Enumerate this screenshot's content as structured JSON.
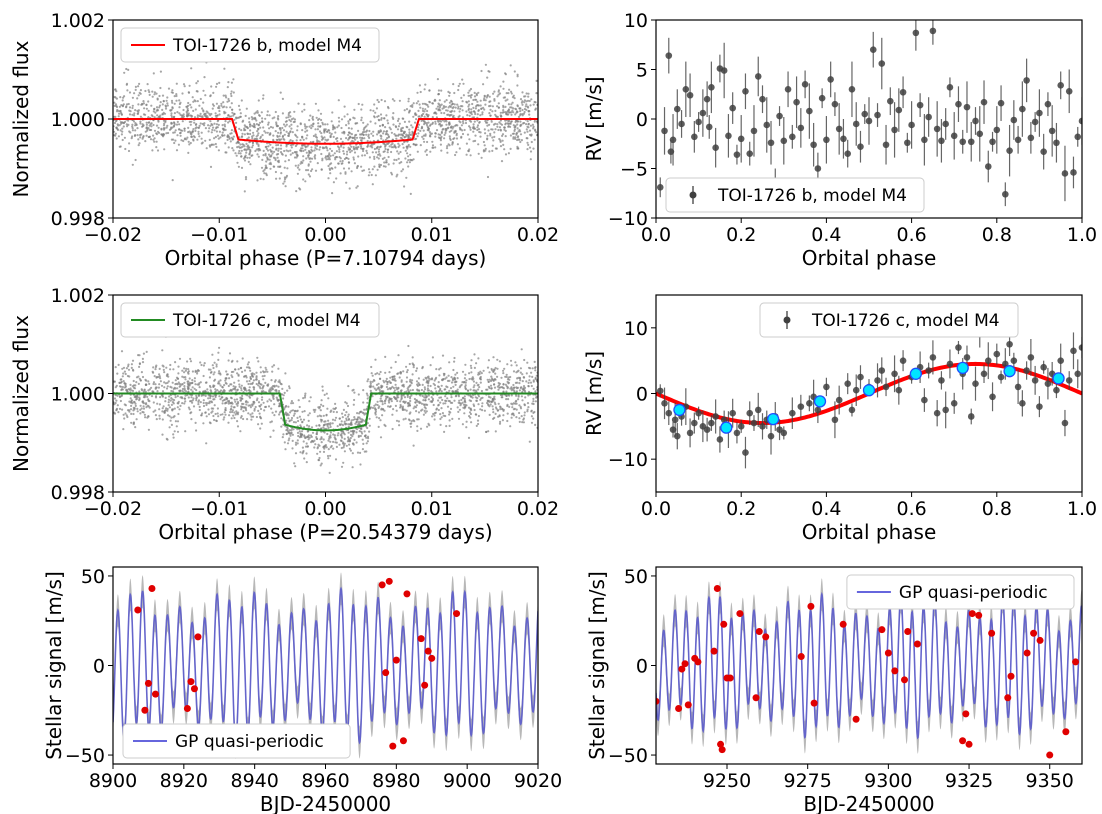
{
  "chart_data": [
    {
      "id": "p1",
      "type": "scatter",
      "xlabel": "Orbital phase (P=7.10794 days)",
      "ylabel": "Normalized flux",
      "xlim": [
        -0.02,
        0.02
      ],
      "ylim": [
        0.998,
        1.002
      ],
      "xticks": [
        -0.02,
        -0.01,
        0.0,
        0.01,
        0.02
      ],
      "xtick_labels": [
        "−0.02",
        "−0.01",
        "0.00",
        "0.01",
        "0.02"
      ],
      "yticks": [
        0.998,
        1.0,
        1.002
      ],
      "ytick_labels": [
        "0.998",
        "1.000",
        "1.002"
      ],
      "legend": {
        "position": "upper-left",
        "entries": [
          {
            "label": "TOI-1726 b, model M4",
            "color": "#ff0000",
            "kind": "line"
          }
        ]
      },
      "transit": {
        "depth": 0.0005,
        "half_duration": 0.0088,
        "ingress": 0.0006,
        "color": "#ff0000"
      },
      "scatter_noise": 0.00035,
      "point_color": "#808080"
    },
    {
      "id": "p2",
      "type": "scatter",
      "xlabel": "Orbital phase",
      "ylabel": "RV [m/s]",
      "xlim": [
        0.0,
        1.0
      ],
      "ylim": [
        -10,
        10
      ],
      "xticks": [
        0.0,
        0.2,
        0.4,
        0.6,
        0.8,
        1.0
      ],
      "xtick_labels": [
        "0.0",
        "0.2",
        "0.4",
        "0.6",
        "0.8",
        "1.0"
      ],
      "yticks": [
        -10,
        -5,
        0,
        5,
        10
      ],
      "ytick_labels": [
        "−10",
        "−5",
        "0",
        "5",
        "10"
      ],
      "legend": {
        "position": "lower-left",
        "entries": [
          {
            "label": "TOI-1726 b, model M4",
            "color": "#404040",
            "kind": "errorbar"
          }
        ]
      },
      "points": [
        [
          0.01,
          -6.9
        ],
        [
          0.02,
          -1.2
        ],
        [
          0.03,
          6.4
        ],
        [
          0.035,
          -3.3
        ],
        [
          0.04,
          -2.1
        ],
        [
          0.05,
          1.0
        ],
        [
          0.06,
          -0.5
        ],
        [
          0.07,
          3.0
        ],
        [
          0.08,
          2.4
        ],
        [
          0.09,
          -1.8
        ],
        [
          0.1,
          -0.3
        ],
        [
          0.11,
          0.6
        ],
        [
          0.12,
          2.0
        ],
        [
          0.125,
          -0.8
        ],
        [
          0.13,
          3.2
        ],
        [
          0.14,
          -2.9
        ],
        [
          0.15,
          5.1
        ],
        [
          0.16,
          4.9
        ],
        [
          0.17,
          -1.7
        ],
        [
          0.18,
          1.1
        ],
        [
          0.19,
          -3.6
        ],
        [
          0.2,
          -2.0
        ],
        [
          0.21,
          2.8
        ],
        [
          0.22,
          -3.5
        ],
        [
          0.23,
          -1.2
        ],
        [
          0.24,
          4.3
        ],
        [
          0.25,
          2.0
        ],
        [
          0.26,
          -0.6
        ],
        [
          0.27,
          -2.4
        ],
        [
          0.28,
          -6.6
        ],
        [
          0.29,
          0.3
        ],
        [
          0.3,
          -2.2
        ],
        [
          0.31,
          3.0
        ],
        [
          0.32,
          -1.8
        ],
        [
          0.33,
          1.7
        ],
        [
          0.34,
          -0.9
        ],
        [
          0.35,
          3.5
        ],
        [
          0.36,
          0.8
        ],
        [
          0.37,
          -2.6
        ],
        [
          0.38,
          -5.0
        ],
        [
          0.39,
          2.1
        ],
        [
          0.4,
          -2.1
        ],
        [
          0.41,
          4.0
        ],
        [
          0.42,
          1.5
        ],
        [
          0.43,
          -1.0
        ],
        [
          0.44,
          -2.0
        ],
        [
          0.45,
          -3.5
        ],
        [
          0.46,
          3.0
        ],
        [
          0.47,
          -0.5
        ],
        [
          0.48,
          -2.8
        ],
        [
          0.49,
          0.5
        ],
        [
          0.5,
          -0.2
        ],
        [
          0.51,
          7.0
        ],
        [
          0.52,
          0.4
        ],
        [
          0.53,
          5.6
        ],
        [
          0.54,
          -2.6
        ],
        [
          0.55,
          1.8
        ],
        [
          0.56,
          -1.1
        ],
        [
          0.57,
          0.9
        ],
        [
          0.58,
          2.7
        ],
        [
          0.59,
          -2.4
        ],
        [
          0.6,
          -0.6
        ],
        [
          0.61,
          8.7
        ],
        [
          0.62,
          1.4
        ],
        [
          0.63,
          -2.1
        ],
        [
          0.64,
          0.2
        ],
        [
          0.65,
          8.9
        ],
        [
          0.66,
          -1.0
        ],
        [
          0.67,
          -2.2
        ],
        [
          0.68,
          -0.5
        ],
        [
          0.69,
          3.2
        ],
        [
          0.7,
          -1.7
        ],
        [
          0.71,
          1.5
        ],
        [
          0.72,
          -2.3
        ],
        [
          0.73,
          1.2
        ],
        [
          0.74,
          -2.3
        ],
        [
          0.75,
          -0.2
        ],
        [
          0.76,
          -1.5
        ],
        [
          0.77,
          1.7
        ],
        [
          0.78,
          -4.8
        ],
        [
          0.79,
          -2.3
        ],
        [
          0.8,
          -1.1
        ],
        [
          0.81,
          1.6
        ],
        [
          0.82,
          -7.6
        ],
        [
          0.83,
          -3.2
        ],
        [
          0.84,
          -0.1
        ],
        [
          0.85,
          -2.1
        ],
        [
          0.86,
          1.0
        ],
        [
          0.87,
          3.9
        ],
        [
          0.88,
          -1.9
        ],
        [
          0.89,
          -0.3
        ],
        [
          0.9,
          0.6
        ],
        [
          0.91,
          -3.3
        ],
        [
          0.92,
          1.5
        ],
        [
          0.93,
          -1.2
        ],
        [
          0.94,
          -2.4
        ],
        [
          0.95,
          3.4
        ],
        [
          0.96,
          -5.5
        ],
        [
          0.97,
          2.8
        ],
        [
          0.98,
          -5.4
        ],
        [
          0.99,
          -1.8
        ],
        [
          1.0,
          -0.2
        ]
      ],
      "point_color": "#404040"
    },
    {
      "id": "p3",
      "type": "scatter",
      "xlabel": "Orbital phase (P=20.54379 days)",
      "ylabel": "Normalized flux",
      "xlim": [
        -0.02,
        0.02
      ],
      "ylim": [
        0.998,
        1.002
      ],
      "xticks": [
        -0.02,
        -0.01,
        0.0,
        0.01,
        0.02
      ],
      "xtick_labels": [
        "−0.02",
        "−0.01",
        "0.00",
        "0.01",
        "0.02"
      ],
      "yticks": [
        0.998,
        1.0,
        1.002
      ],
      "ytick_labels": [
        "0.998",
        "1.000",
        "1.002"
      ],
      "legend": {
        "position": "upper-left",
        "entries": [
          {
            "label": "TOI-1726 c, model M4",
            "color": "#228b22",
            "kind": "line"
          }
        ]
      },
      "transit": {
        "depth": 0.00075,
        "half_duration": 0.0043,
        "ingress": 0.0005,
        "color": "#228b22"
      },
      "scatter_noise": 0.00032,
      "point_color": "#808080"
    },
    {
      "id": "p4",
      "type": "scatter",
      "xlabel": "Orbital phase",
      "ylabel": "RV [m/s]",
      "xlim": [
        0.0,
        1.0
      ],
      "ylim": [
        -15,
        15
      ],
      "xticks": [
        0.0,
        0.2,
        0.4,
        0.6,
        0.8,
        1.0
      ],
      "xtick_labels": [
        "0.0",
        "0.2",
        "0.4",
        "0.6",
        "0.8",
        "1.0"
      ],
      "yticks": [
        -10,
        0,
        10
      ],
      "ytick_labels": [
        "−10",
        "0",
        "10"
      ],
      "legend": {
        "position": "upper-center",
        "entries": [
          {
            "label": "TOI-1726 c, model M4",
            "color": "#404040",
            "kind": "errorbar"
          }
        ]
      },
      "model": {
        "type": "sine",
        "amplitude": 4.5,
        "phase_shift": 0.0,
        "color": "#ff0000"
      },
      "points": [
        [
          0.01,
          0.4
        ],
        [
          0.02,
          -1.5
        ],
        [
          0.03,
          -3.0
        ],
        [
          0.04,
          -5.5
        ],
        [
          0.045,
          -4.0
        ],
        [
          0.05,
          -6.5
        ],
        [
          0.06,
          -3.5
        ],
        [
          0.07,
          -2.0
        ],
        [
          0.08,
          -6.0
        ],
        [
          0.09,
          -4.5
        ],
        [
          0.1,
          -3.0
        ],
        [
          0.11,
          -5.0
        ],
        [
          0.12,
          -5.5
        ],
        [
          0.13,
          -4.5
        ],
        [
          0.14,
          -3.5
        ],
        [
          0.15,
          -7.0
        ],
        [
          0.16,
          -4.0
        ],
        [
          0.17,
          -5.5
        ],
        [
          0.18,
          -3.0
        ],
        [
          0.19,
          -6.0
        ],
        [
          0.2,
          -5.0
        ],
        [
          0.21,
          -9.0
        ],
        [
          0.22,
          -3.0
        ],
        [
          0.23,
          -4.5
        ],
        [
          0.24,
          -2.5
        ],
        [
          0.25,
          -5.0
        ],
        [
          0.26,
          -4.0
        ],
        [
          0.27,
          -6.5
        ],
        [
          0.28,
          -3.5
        ],
        [
          0.29,
          -5.5
        ],
        [
          0.3,
          -6.0
        ],
        [
          0.32,
          -3.0
        ],
        [
          0.34,
          -2.0
        ],
        [
          0.36,
          -1.5
        ],
        [
          0.37,
          -0.5
        ],
        [
          0.38,
          -2.5
        ],
        [
          0.4,
          1.0
        ],
        [
          0.42,
          -4.0
        ],
        [
          0.43,
          -1.0
        ],
        [
          0.45,
          1.5
        ],
        [
          0.46,
          -2.5
        ],
        [
          0.47,
          0.5
        ],
        [
          0.48,
          2.5
        ],
        [
          0.5,
          1.0
        ],
        [
          0.52,
          2.0
        ],
        [
          0.53,
          3.5
        ],
        [
          0.54,
          1.0
        ],
        [
          0.56,
          3.0
        ],
        [
          0.57,
          0.5
        ],
        [
          0.58,
          5.0
        ],
        [
          0.6,
          2.5
        ],
        [
          0.62,
          4.0
        ],
        [
          0.63,
          -1.0
        ],
        [
          0.64,
          3.5
        ],
        [
          0.65,
          5.5
        ],
        [
          0.66,
          -3.0
        ],
        [
          0.67,
          2.0
        ],
        [
          0.68,
          -2.5
        ],
        [
          0.69,
          4.5
        ],
        [
          0.7,
          -1.5
        ],
        [
          0.71,
          7.0
        ],
        [
          0.72,
          3.0
        ],
        [
          0.73,
          5.5
        ],
        [
          0.74,
          -3.5
        ],
        [
          0.75,
          1.5
        ],
        [
          0.76,
          9.0
        ],
        [
          0.77,
          3.0
        ],
        [
          0.78,
          5.0
        ],
        [
          0.79,
          -0.5
        ],
        [
          0.8,
          6.0
        ],
        [
          0.81,
          2.5
        ],
        [
          0.82,
          4.5
        ],
        [
          0.83,
          7.5
        ],
        [
          0.84,
          5.0
        ],
        [
          0.85,
          1.0
        ],
        [
          0.86,
          -1.5
        ],
        [
          0.87,
          3.5
        ],
        [
          0.88,
          5.5
        ],
        [
          0.89,
          2.0
        ],
        [
          0.9,
          -2.0
        ],
        [
          0.91,
          4.0
        ],
        [
          0.92,
          1.5
        ],
        [
          0.93,
          3.0
        ],
        [
          0.94,
          0.5
        ],
        [
          0.95,
          5.0
        ],
        [
          0.96,
          -4.5
        ],
        [
          0.97,
          2.0
        ],
        [
          0.98,
          6.5
        ],
        [
          0.99,
          3.0
        ],
        [
          1.0,
          7.0
        ]
      ],
      "binned": [
        [
          0.055,
          -2.5
        ],
        [
          0.165,
          -5.2
        ],
        [
          0.275,
          -3.9
        ],
        [
          0.385,
          -1.2
        ],
        [
          0.5,
          0.5
        ],
        [
          0.61,
          3.0
        ],
        [
          0.72,
          3.9
        ],
        [
          0.83,
          3.4
        ],
        [
          0.945,
          2.3
        ]
      ],
      "point_color": "#404040",
      "binned_color": "#00e5ff"
    },
    {
      "id": "p5",
      "type": "line",
      "xlabel": "BJD-2450000",
      "ylabel": "Stellar signal [m/s]",
      "xlim": [
        8900,
        9020
      ],
      "ylim": [
        -55,
        55
      ],
      "xticks": [
        8900,
        8920,
        8940,
        8960,
        8980,
        9000,
        9020
      ],
      "xtick_labels": [
        "8900",
        "8920",
        "8940",
        "8960",
        "8980",
        "9000",
        "9020"
      ],
      "yticks": [
        -50,
        0,
        50
      ],
      "ytick_labels": [
        "−50",
        "0",
        "50"
      ],
      "legend": {
        "position": "lower-left",
        "entries": [
          {
            "label": "GP quasi-periodic",
            "color": "#6666dd",
            "kind": "line"
          }
        ]
      },
      "gp": {
        "period": 3.5,
        "amplitude": 38,
        "color": "#5555cc",
        "band_color": "#b0b0b0"
      },
      "points": [
        [
          8907,
          31
        ],
        [
          8909,
          -25
        ],
        [
          8910,
          -10
        ],
        [
          8911,
          43
        ],
        [
          8912,
          -16
        ],
        [
          8921,
          -24
        ],
        [
          8922,
          -9
        ],
        [
          8923,
          -13
        ],
        [
          8924,
          16
        ],
        [
          8976,
          45
        ],
        [
          8977,
          -4
        ],
        [
          8978,
          47
        ],
        [
          8979,
          -45
        ],
        [
          8980,
          3
        ],
        [
          8982,
          -42
        ],
        [
          8983,
          40
        ],
        [
          8987,
          15
        ],
        [
          8988,
          -11
        ],
        [
          8989,
          8
        ],
        [
          8990,
          4
        ],
        [
          8997,
          29
        ]
      ],
      "point_color": "#e00000"
    },
    {
      "id": "p6",
      "type": "line",
      "xlabel": "BJD-2450000",
      "ylabel": "Stellar signal [m/s]",
      "xlim": [
        9228,
        9360
      ],
      "ylim": [
        -55,
        55
      ],
      "xticks": [
        9250,
        9275,
        9300,
        9325,
        9350
      ],
      "xtick_labels": [
        "9250",
        "9275",
        "9300",
        "9325",
        "9350"
      ],
      "yticks": [
        -50,
        0,
        50
      ],
      "ytick_labels": [
        "−50",
        "0",
        "50"
      ],
      "legend": {
        "position": "upper-right",
        "entries": [
          {
            "label": "GP quasi-periodic",
            "color": "#6666dd",
            "kind": "line"
          }
        ]
      },
      "gp": {
        "period": 3.5,
        "amplitude": 35,
        "color": "#5555cc",
        "band_color": "#b0b0b0"
      },
      "points": [
        [
          9228,
          -20
        ],
        [
          9235,
          -24
        ],
        [
          9236,
          -2
        ],
        [
          9237,
          1
        ],
        [
          9238,
          -22
        ],
        [
          9240,
          4
        ],
        [
          9241,
          2
        ],
        [
          9246,
          8
        ],
        [
          9247,
          43
        ],
        [
          9248,
          -44
        ],
        [
          9248.5,
          -47
        ],
        [
          9249,
          23
        ],
        [
          9250,
          -7
        ],
        [
          9251,
          -7
        ],
        [
          9254,
          29
        ],
        [
          9259,
          -18
        ],
        [
          9260,
          19
        ],
        [
          9262,
          16
        ],
        [
          9273,
          5
        ],
        [
          9276,
          33
        ],
        [
          9277,
          -21
        ],
        [
          9286,
          23
        ],
        [
          9290,
          -30
        ],
        [
          9298,
          20
        ],
        [
          9300,
          7
        ],
        [
          9302,
          -3
        ],
        [
          9305,
          -8
        ],
        [
          9306,
          19
        ],
        [
          9309,
          12
        ],
        [
          9323,
          -42
        ],
        [
          9324,
          -27
        ],
        [
          9325,
          -44
        ],
        [
          9326,
          29
        ],
        [
          9328,
          28
        ],
        [
          9332,
          18
        ],
        [
          9337,
          -18
        ],
        [
          9338,
          -6
        ],
        [
          9343,
          7
        ],
        [
          9345,
          18
        ],
        [
          9347,
          14
        ],
        [
          9350,
          -50
        ],
        [
          9355,
          -37
        ],
        [
          9358,
          2
        ]
      ],
      "point_color": "#e00000"
    }
  ]
}
